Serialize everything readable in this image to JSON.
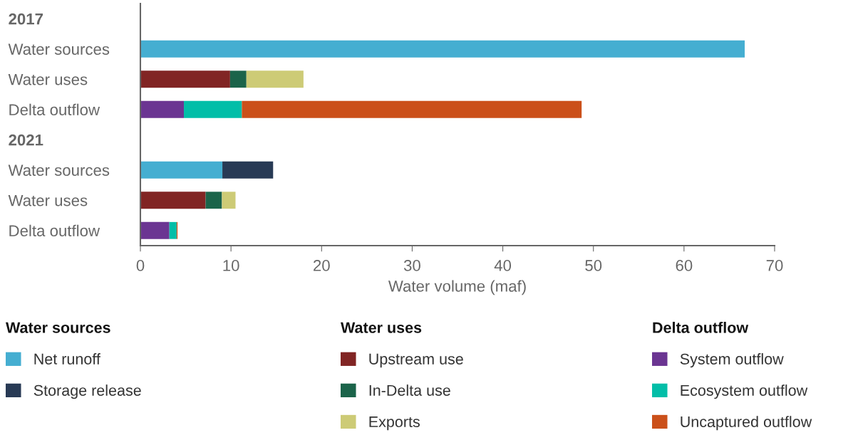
{
  "chart_data": {
    "type": "bar",
    "orientation": "horizontal",
    "stacked": true,
    "categories": [
      "2017",
      "Water sources",
      "Water uses",
      "Delta outflow",
      "2021",
      "Water sources",
      "Water uses",
      "Delta outflow"
    ],
    "series": [
      {
        "name": "Net runoff",
        "color": "#45aed1",
        "values": [
          null,
          66.7,
          null,
          null,
          null,
          9.05,
          null,
          null
        ]
      },
      {
        "name": "Storage release",
        "color": "#283a55",
        "values": [
          null,
          0,
          null,
          null,
          null,
          5.6,
          null,
          null
        ]
      },
      {
        "name": "Upstream use",
        "color": "#812524",
        "values": [
          null,
          null,
          9.9,
          null,
          null,
          null,
          7.2,
          null
        ]
      },
      {
        "name": "In-Delta use",
        "color": "#1b644a",
        "values": [
          null,
          null,
          1.8,
          null,
          null,
          null,
          1.8,
          null
        ]
      },
      {
        "name": "Exports",
        "color": "#cdcb76",
        "values": [
          null,
          null,
          6.3,
          null,
          null,
          null,
          1.5,
          null
        ]
      },
      {
        "name": "System outflow",
        "color": "#6b3592",
        "values": [
          null,
          null,
          null,
          4.8,
          null,
          null,
          null,
          3.2
        ]
      },
      {
        "name": "Ecosystem outflow",
        "color": "#02bea8",
        "values": [
          null,
          null,
          null,
          6.4,
          null,
          null,
          null,
          0.8
        ]
      },
      {
        "name": "Uncaptured outflow",
        "color": "#cb501a",
        "values": [
          null,
          null,
          null,
          37.5,
          null,
          null,
          null,
          0.1
        ]
      }
    ],
    "xlabel": "Water volume (maf)",
    "xlim": [
      0,
      70
    ],
    "xticks": [
      0,
      10,
      20,
      30,
      40,
      50,
      60,
      70
    ],
    "annotations": [
      "Water sources",
      "Water uses",
      "Delta outflow"
    ],
    "legend": "bottom",
    "grid": false
  }
}
